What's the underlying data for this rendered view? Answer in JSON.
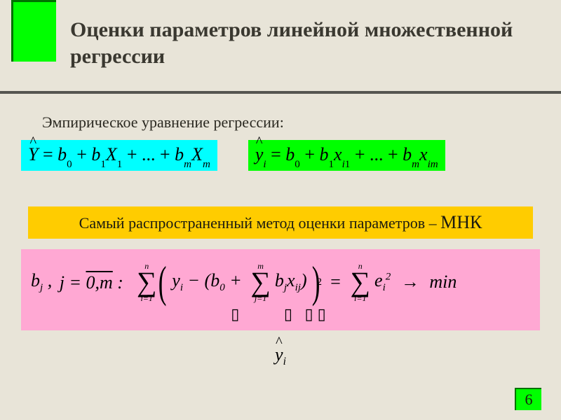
{
  "colors": {
    "background": "#e8e4d8",
    "accent_green": "#00ff00",
    "cyan": "#00ffff",
    "yellow": "#ffcc00",
    "pink": "#ffa8d3",
    "rule": "#555550",
    "green_shadow": "#007000"
  },
  "title": "Оценки параметров линейной множественной регрессии",
  "subheading": "Эмпирическое уравнение регрессии:",
  "eq1_parts": {
    "lhs": "Ŷ",
    "b0": "b",
    "b1": "b",
    "X1": "X",
    "bm": "b",
    "Xm": "X"
  },
  "eq2_parts": {
    "lhs": "ŷᵢ",
    "b0": "b",
    "b1": "b",
    "xi1": "x",
    "bm": "b",
    "xim": "x"
  },
  "yellow": {
    "text": "Самый распространенный метод оценки параметров – ",
    "mnk": "МНК"
  },
  "pink": {
    "prefix_b": "b",
    "prefix_j": "j",
    "range": "0,m",
    "sum1_top": "n",
    "sum1_bottom": "i=1",
    "y": "y",
    "b0": "b",
    "sum2_top": "m",
    "sum2_bottom": "j=1",
    "bj": "b",
    "xij": "x",
    "sum3_top": "n",
    "sum3_bottom": "i=1",
    "e": "e",
    "min": "min"
  },
  "loose": "yᵢ",
  "page_number": "6"
}
